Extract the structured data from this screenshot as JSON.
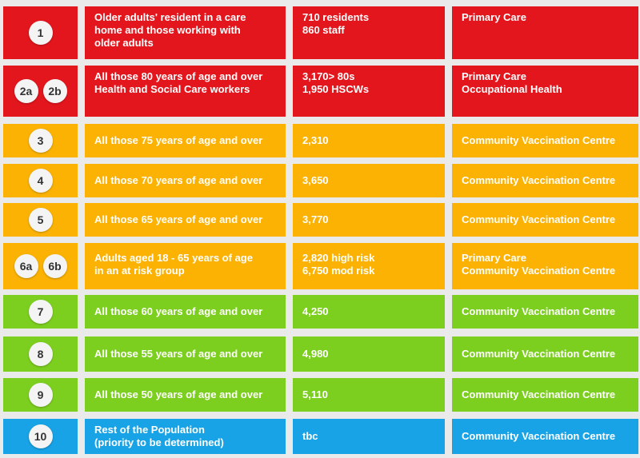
{
  "colors": {
    "red": "#e3161d",
    "orange": "#fbb203",
    "green": "#7ccf1f",
    "blue": "#18a3e6"
  },
  "rows": [
    {
      "badges": [
        "1"
      ],
      "group": "Older adults' resident in a care\nhome and those working with\nolder adults",
      "numbers": "710 residents\n860 staff",
      "location": "Primary Care",
      "color": "red"
    },
    {
      "badges": [
        "2a",
        "2b"
      ],
      "group": "All those 80 years of age and over\nHealth and Social Care workers",
      "numbers": "3,170> 80s\n1,950 HSCWs",
      "location": "Primary Care\nOccupational Health",
      "color": "red"
    },
    {
      "badges": [
        "3"
      ],
      "group": "All those 75 years of age and over",
      "numbers": "2,310",
      "location": "Community Vaccination Centre",
      "color": "orange"
    },
    {
      "badges": [
        "4"
      ],
      "group": "All those 70 years of age and over",
      "numbers": "3,650",
      "location": "Community Vaccination Centre",
      "color": "orange"
    },
    {
      "badges": [
        "5"
      ],
      "group": "All those 65 years of age and over",
      "numbers": "3,770",
      "location": "Community Vaccination Centre",
      "color": "orange"
    },
    {
      "badges": [
        "6a",
        "6b"
      ],
      "group": "Adults aged 18 - 65 years of age\nin an at risk group",
      "numbers": "2,820 high risk\n6,750 mod risk",
      "location": "Primary Care\nCommunity Vaccination Centre",
      "color": "orange"
    },
    {
      "badges": [
        "7"
      ],
      "group": "All those 60 years of age and over",
      "numbers": "4,250",
      "location": "Community Vaccination Centre",
      "color": "green"
    },
    {
      "badges": [
        "8"
      ],
      "group": "All those 55 years of age and over",
      "numbers": "4,980",
      "location": "Community Vaccination Centre",
      "color": "green"
    },
    {
      "badges": [
        "9"
      ],
      "group": "All those 50 years of age and over",
      "numbers": "5,110",
      "location": "Community Vaccination Centre",
      "color": "green"
    },
    {
      "badges": [
        "10"
      ],
      "group": "Rest of the Population\n(priority to be determined)",
      "numbers": "tbc",
      "location": "Community Vaccination Centre",
      "color": "blue"
    }
  ]
}
